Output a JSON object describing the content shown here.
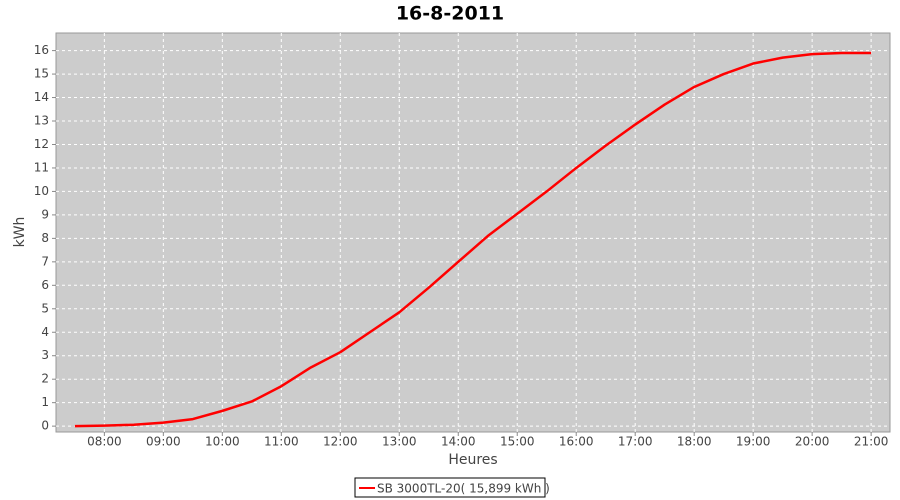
{
  "chart_data": {
    "type": "line",
    "title": "16-8-2011",
    "x_label": "Heures",
    "y_label": "kWh",
    "x": [
      7.5,
      8,
      8.5,
      9,
      9.5,
      10,
      10.5,
      11,
      11.5,
      12,
      12.5,
      13,
      13.5,
      14,
      14.5,
      15,
      15.5,
      16,
      16.5,
      17,
      17.5,
      18,
      18.5,
      19,
      19.5,
      20,
      20.5,
      21
    ],
    "series": [
      {
        "name": "SB 3000TL-20( 15,899 kWh )",
        "color": "#ff0000",
        "values": [
          0,
          0.02,
          0.06,
          0.15,
          0.3,
          0.65,
          1.05,
          1.7,
          2.5,
          3.15,
          4.0,
          4.85,
          5.9,
          7.0,
          8.1,
          9.05,
          10.0,
          11.0,
          11.95,
          12.85,
          13.7,
          14.45,
          15.0,
          15.45,
          15.7,
          15.85,
          15.9,
          15.9
        ]
      }
    ],
    "xlim": [
      7.18,
      21.32
    ],
    "xticks": [
      {
        "value": 8,
        "label": "08:00"
      },
      {
        "value": 9,
        "label": "09:00"
      },
      {
        "value": 10,
        "label": "10:00"
      },
      {
        "value": 11,
        "label": "11:00"
      },
      {
        "value": 12,
        "label": "12:00"
      },
      {
        "value": 13,
        "label": "13:00"
      },
      {
        "value": 14,
        "label": "14:00"
      },
      {
        "value": 15,
        "label": "15:00"
      },
      {
        "value": 16,
        "label": "16:00"
      },
      {
        "value": 17,
        "label": "17:00"
      },
      {
        "value": 18,
        "label": "18:00"
      },
      {
        "value": 19,
        "label": "19:00"
      },
      {
        "value": 20,
        "label": "20:00"
      },
      {
        "value": 21,
        "label": "21:00"
      }
    ],
    "ylim": [
      -0.25,
      16.75
    ],
    "yticks": [
      0,
      1,
      2,
      3,
      4,
      5,
      6,
      7,
      8,
      9,
      10,
      11,
      12,
      13,
      14,
      15,
      16
    ],
    "grid": true,
    "legend": "bottom"
  }
}
